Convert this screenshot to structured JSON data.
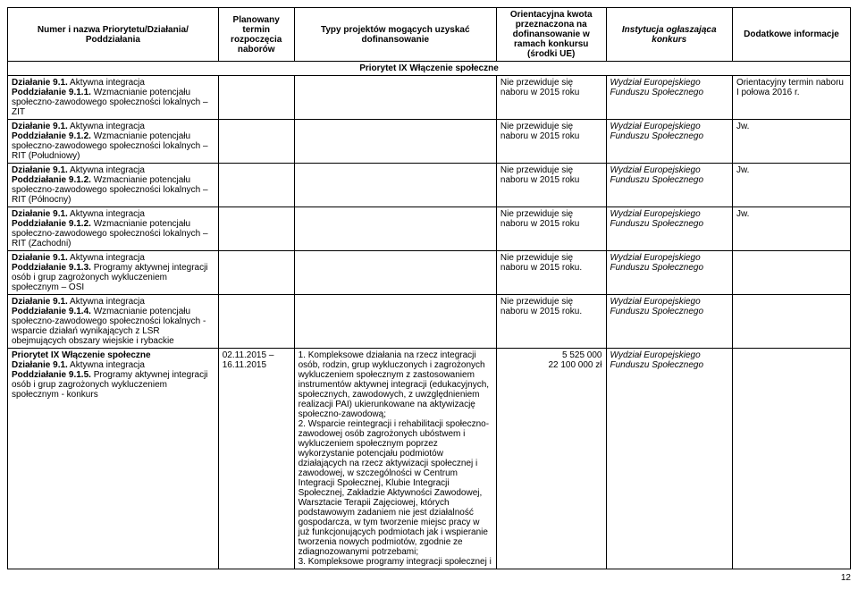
{
  "headers": {
    "col1": "Numer i nazwa Priorytetu/Działania/ Poddziałania",
    "col2": "Planowany termin rozpoczęcia naborów",
    "col3": "Typy projektów mogących uzyskać dofinansowanie",
    "col4": "Orientacyjna kwota przeznaczona na dofinansowanie w ramach konkursu (środki UE)",
    "col5": "Instytucja ogłaszająca konkurs",
    "col6": "Dodatkowe informacje"
  },
  "priority_title": "Priorytet IX Włączenie społeczne",
  "rows": [
    {
      "name_parts": [
        {
          "b": "Działanie 9.1.",
          "t": " Aktywna integracja"
        },
        {
          "b": "Poddziałanie 9.1.1.",
          "t": " Wzmacnianie potencjału społeczno-zawodowego społeczności lokalnych – ZIT"
        }
      ],
      "term": "",
      "types": "",
      "kwota": "Nie przewiduje się naboru w 2015 roku",
      "inst": "Wydział Europejskiego Funduszu Społecznego",
      "info": "Orientacyjny termin naboru I połowa 2016 r."
    },
    {
      "name_parts": [
        {
          "b": "Działanie 9.1.",
          "t": " Aktywna integracja"
        },
        {
          "b": "Poddziałanie 9.1.2.",
          "t": " Wzmacnianie potencjału społeczno-zawodowego społeczności lokalnych – RIT (Południowy)"
        }
      ],
      "term": "",
      "types": "",
      "kwota": "Nie przewiduje się naboru w 2015 roku",
      "inst": "Wydział Europejskiego Funduszu Społecznego",
      "info": "Jw."
    },
    {
      "name_parts": [
        {
          "b": "Działanie 9.1.",
          "t": " Aktywna integracja"
        },
        {
          "b": "Poddziałanie 9.1.2.",
          "t": " Wzmacnianie potencjału społeczno-zawodowego społeczności lokalnych – RIT (Północny)"
        }
      ],
      "term": "",
      "types": "",
      "kwota": "Nie przewiduje się naboru w 2015 roku",
      "inst": "Wydział Europejskiego Funduszu Społecznego",
      "info": "Jw."
    },
    {
      "name_parts": [
        {
          "b": "Działanie 9.1.",
          "t": " Aktywna integracja"
        },
        {
          "b": "Poddziałanie 9.1.2.",
          "t": " Wzmacnianie potencjału społeczno-zawodowego społeczności lokalnych – RIT (Zachodni)"
        }
      ],
      "term": "",
      "types": "",
      "kwota": "Nie przewiduje się naboru w 2015 roku",
      "inst": "Wydział Europejskiego Funduszu Społecznego",
      "info": "Jw."
    },
    {
      "name_parts": [
        {
          "b": "Działanie 9.1.",
          "t": " Aktywna integracja"
        },
        {
          "b": "Poddziałanie 9.1.3.",
          "t": " Programy aktywnej integracji osób i grup zagrożonych wykluczeniem społecznym – OSI"
        }
      ],
      "term": "",
      "types": "",
      "kwota": "Nie przewiduje się naboru w 2015 roku.",
      "inst": "Wydział Europejskiego Funduszu Społecznego",
      "info": ""
    },
    {
      "name_parts": [
        {
          "b": "Działanie 9.1.",
          "t": " Aktywna integracja"
        },
        {
          "b": "Poddziałanie 9.1.4.",
          "t": " Wzmacnianie potencjału społeczno-zawodowego społeczności lokalnych - wsparcie działań wynikających z LSR obejmujących obszary wiejskie i rybackie"
        }
      ],
      "term": "",
      "types": "",
      "kwota": "Nie przewiduje się naboru w 2015 roku.",
      "inst": "Wydział Europejskiego Funduszu Społecznego",
      "info": ""
    }
  ],
  "last_row": {
    "name_parts": [
      {
        "b": "Priorytet IX Włączenie społeczne",
        "t": ""
      },
      {
        "b": "Działanie 9.1.",
        "t": " Aktywna integracja"
      },
      {
        "b": "Poddziałanie 9.1.5.",
        "t": " Programy aktywnej integracji osób i grup zagrożonych wykluczeniem społecznym - konkurs"
      }
    ],
    "term": "02.11.2015 – 16.11.2015",
    "types": "1. Kompleksowe działania na rzecz integracji osób, rodzin, grup wykluczonych i zagrożonych wykluczeniem społecznym z zastosowaniem instrumentów aktywnej integracji (edukacyjnych, społecznych, zawodowych, z uwzględnieniem realizacji PAI) ukierunkowane na aktywizację społeczno-zawodową;\n2. Wsparcie reintegracji i rehabilitacji społeczno-zawodowej osób zagrożonych ubóstwem i wykluczeniem społecznym poprzez wykorzystanie potencjału podmiotów działających na rzecz aktywizacji społecznej i zawodowej, w szczególności w Centrum Integracji Społecznej, Klubie Integracji Społecznej, Zakładzie Aktywności Zawodowej, Warsztacie Terapii Zajęciowej, których podstawowym zadaniem nie jest działalność gospodarcza, w tym tworzenie miejsc pracy w już funkcjonujących podmiotach jak i wspieranie tworzenia nowych podmiotów, zgodnie ze zdiagnozowanymi potrzebami;\n3. Kompleksowe programy integracji społecznej i",
    "kwota": "5 525 000\n22 100 000 zł",
    "inst": "Wydział Europejskiego Funduszu Społecznego",
    "info": ""
  },
  "page_num": "12"
}
